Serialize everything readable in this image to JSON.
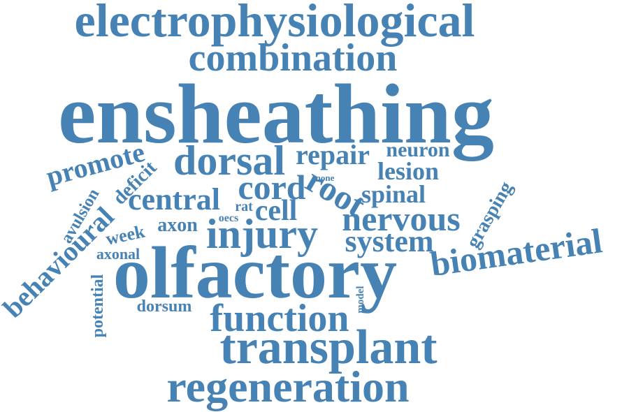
{
  "theme": {
    "word_color": "#4682b4",
    "background": "#ffffff"
  },
  "words": [
    "electrophysiological",
    "combination",
    "ensheathing",
    "promote",
    "dorsal",
    "repair",
    "neuron",
    "lesion",
    "deficit",
    "avulsion",
    "central",
    "cord",
    "none",
    "spinal",
    "grasping",
    "rat",
    "cell",
    "root",
    "behavioural",
    "week",
    "axon",
    "oecs",
    "injury",
    "nervous",
    "system",
    "axonal",
    "biomaterial",
    "olfactory",
    "potential",
    "dorsum",
    "model",
    "function",
    "transplant",
    "regeneration"
  ]
}
